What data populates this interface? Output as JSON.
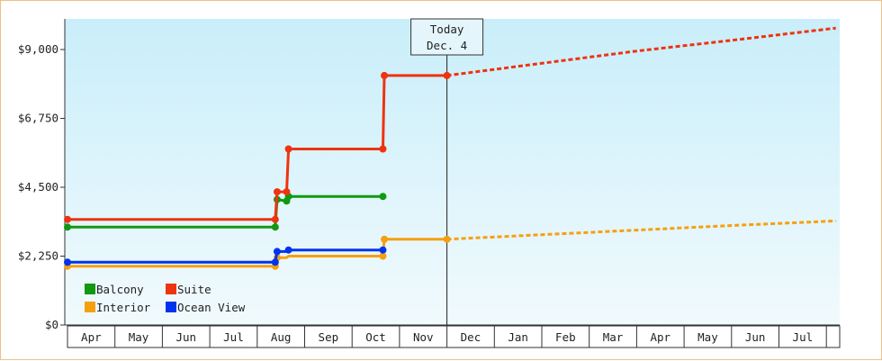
{
  "chart_data": {
    "type": "line",
    "title": "",
    "xlabel": "",
    "ylabel": "",
    "ylim": [
      0,
      10000
    ],
    "y_ticks": [
      {
        "value": 0,
        "label": "$0"
      },
      {
        "value": 2250,
        "label": "$2,250"
      },
      {
        "value": 4500,
        "label": "$4,500"
      },
      {
        "value": 6750,
        "label": "$6,750"
      },
      {
        "value": 9000,
        "label": "$9,000"
      }
    ],
    "x_ticks": [
      "Apr",
      "May",
      "Jun",
      "Jul",
      "Aug",
      "Sep",
      "Oct",
      "Nov",
      "Dec",
      "Jan",
      "Feb",
      "Mar",
      "Apr",
      "May",
      "Jun",
      "Jul"
    ],
    "x_range": [
      0,
      16
    ],
    "today": {
      "line1": "Today",
      "line2": "Dec. 4",
      "x": 8.0
    },
    "grid": false,
    "legend": {
      "position": "bottom-left",
      "columns": 2
    },
    "series": [
      {
        "name": "Balcony",
        "color": "#119911",
        "points": [
          [
            0.0,
            3200
          ],
          [
            4.38,
            3200
          ],
          [
            4.42,
            4100
          ],
          [
            4.62,
            4050
          ],
          [
            4.66,
            4200
          ],
          [
            6.65,
            4200
          ]
        ],
        "markers": [
          0,
          1,
          2,
          3,
          4,
          5
        ],
        "forecast": []
      },
      {
        "name": "Suite",
        "color": "#ee3311",
        "points": [
          [
            0.0,
            3450
          ],
          [
            4.38,
            3450
          ],
          [
            4.42,
            4350
          ],
          [
            4.62,
            4350
          ],
          [
            4.66,
            5750
          ],
          [
            6.65,
            5750
          ],
          [
            6.68,
            8150
          ],
          [
            8.0,
            8150
          ]
        ],
        "markers": [
          0,
          1,
          2,
          3,
          4,
          5,
          6,
          7
        ],
        "forecast": [
          [
            8.0,
            8150
          ],
          [
            10.0,
            8550
          ],
          [
            12.0,
            8950
          ],
          [
            14.0,
            9300
          ],
          [
            16.2,
            9700
          ]
        ]
      },
      {
        "name": "Interior",
        "color": "#f5a010",
        "points": [
          [
            0.0,
            1920
          ],
          [
            4.38,
            1920
          ],
          [
            4.42,
            2200
          ],
          [
            4.62,
            2200
          ],
          [
            4.66,
            2250
          ],
          [
            6.65,
            2250
          ],
          [
            6.68,
            2800
          ],
          [
            8.0,
            2800
          ]
        ],
        "markers": [
          0,
          1,
          2,
          5,
          6,
          7
        ],
        "forecast": [
          [
            8.0,
            2800
          ],
          [
            10.0,
            2950
          ],
          [
            12.0,
            3100
          ],
          [
            14.0,
            3250
          ],
          [
            16.2,
            3400
          ]
        ]
      },
      {
        "name": "Ocean View",
        "color": "#0033ee",
        "points": [
          [
            0.0,
            2050
          ],
          [
            4.38,
            2050
          ],
          [
            4.42,
            2400
          ],
          [
            4.62,
            2400
          ],
          [
            4.66,
            2450
          ],
          [
            6.65,
            2450
          ]
        ],
        "markers": [
          0,
          1,
          2,
          4,
          5
        ],
        "forecast": []
      }
    ]
  }
}
